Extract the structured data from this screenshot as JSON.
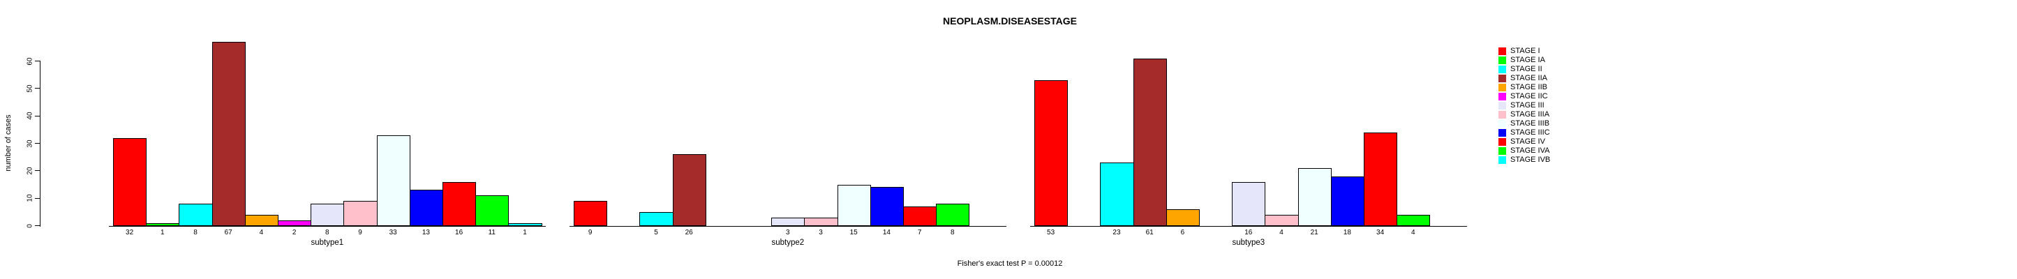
{
  "title": "NEOPLASM.DISEASESTAGE",
  "annotation": "Fisher's exact test P = 0.00012",
  "chart_data": {
    "type": "bar",
    "title": "NEOPLASM.DISEASESTAGE",
    "ylabel": "number of cases",
    "xlabel": "",
    "annotation": "Fisher's exact test P = 0.00012",
    "groups": [
      "subtype1",
      "subtype2",
      "subtype3"
    ],
    "yticks": [
      0,
      10,
      20,
      30,
      40,
      50,
      60
    ],
    "ylim": [
      0,
      67
    ],
    "grid": false,
    "legend_position": "right",
    "value_labels_shown_for_zero": false,
    "series": [
      {
        "name": "STAGE I",
        "color": "#FF0000",
        "values": [
          32,
          9,
          53
        ]
      },
      {
        "name": "STAGE IA",
        "color": "#00FF00",
        "values": [
          1,
          0,
          0
        ]
      },
      {
        "name": "STAGE II",
        "color": "#00FFFF",
        "values": [
          8,
          5,
          23
        ]
      },
      {
        "name": "STAGE IIA",
        "color": "#A52A2A",
        "values": [
          67,
          26,
          61
        ]
      },
      {
        "name": "STAGE IIB",
        "color": "#FFA500",
        "values": [
          4,
          0,
          6
        ]
      },
      {
        "name": "STAGE IIC",
        "color": "#FF00FF",
        "values": [
          2,
          0,
          0
        ]
      },
      {
        "name": "STAGE III",
        "color": "#E6E6FA",
        "values": [
          8,
          3,
          16
        ]
      },
      {
        "name": "STAGE IIIA",
        "color": "#FFC0CB",
        "values": [
          9,
          3,
          4
        ]
      },
      {
        "name": "STAGE IIIB",
        "color": "#F0FFFF",
        "values": [
          33,
          15,
          21
        ]
      },
      {
        "name": "STAGE IIIC",
        "color": "#0000FF",
        "values": [
          13,
          14,
          18
        ]
      },
      {
        "name": "STAGE IV",
        "color": "#FF0000",
        "values": [
          16,
          7,
          34
        ]
      },
      {
        "name": "STAGE IVA",
        "color": "#00FF00",
        "values": [
          11,
          8,
          4
        ]
      },
      {
        "name": "STAGE IVB",
        "color": "#00FFFF",
        "values": [
          1,
          0,
          0
        ]
      }
    ]
  }
}
